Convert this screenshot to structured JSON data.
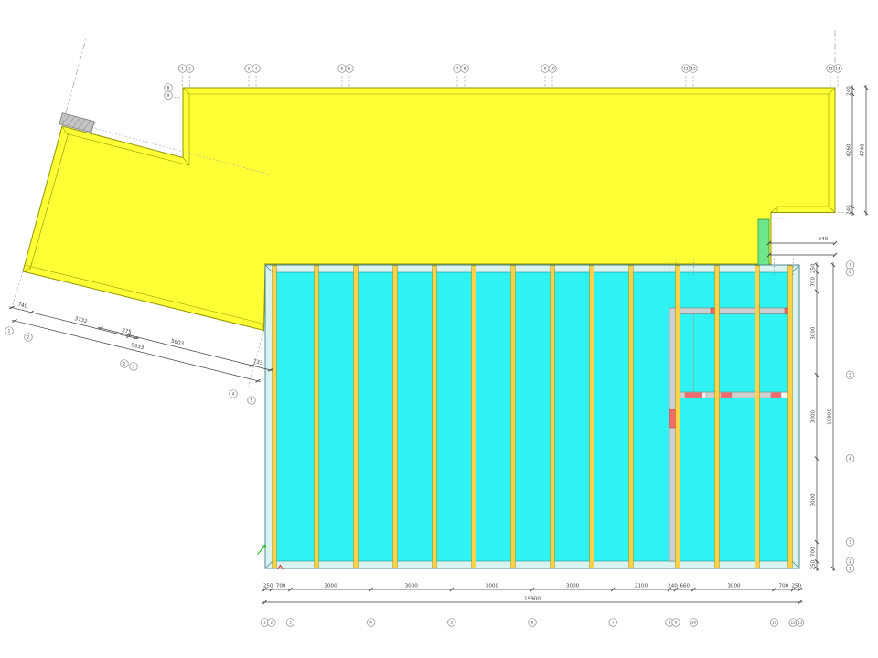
{
  "drawing": {
    "colors": {
      "slab_yellow": "#ffff35",
      "slab_edge": "#8f9600",
      "deck_cyan": "#2ff2f2",
      "wall_band": "#d9f4ef",
      "cyan_edge": "#3d7d85",
      "joist": "#ffd24a",
      "joist_edge": "#a68a00",
      "wall_gray": "#cfcfcf",
      "wall_edge": "#7a7a7a",
      "opening_red": "#f36b6b",
      "opening_edge": "#c03030",
      "green_strip": "#6ee68a",
      "green_edge": "#2f9a4a",
      "dim": "#3c3c3c",
      "bubble_edge": "#8a8a8a",
      "centerline": "#9a9a9a",
      "hidden_line": "#aaaaaa",
      "ucs_green": "#18b318",
      "ucs_red": "#e02020",
      "hatch_fill": "#c4c4c4",
      "hatch_line": "#8a8a8a"
    },
    "dim_chains": {
      "bottom": {
        "segments_mm": [
          250,
          700,
          3000,
          3000,
          3000,
          3000,
          2100,
          240,
          660,
          3000,
          700,
          250
        ],
        "labels": [
          "250",
          "700",
          "3000",
          "3000",
          "3000",
          "3000",
          "2100",
          "240",
          "660",
          "3000",
          "700",
          "250"
        ],
        "total": "19900"
      },
      "right_deck": {
        "segments_mm": [
          250,
          700,
          3000,
          3000,
          3000,
          700,
          250
        ],
        "labels": [
          "250",
          "700",
          "3000",
          "3000",
          "3000",
          "700",
          "250"
        ],
        "total": "10900"
      },
      "right_slab": {
        "segments_mm": [
          240,
          4260,
          240
        ],
        "labels": [
          "240",
          "4260",
          "240"
        ],
        "total": "4740"
      },
      "notch_label": "240",
      "left_slant": {
        "chain1": [
          "740",
          "3732",
          "275"
        ],
        "chain2": [
          "9333"
        ],
        "chain3": [
          "5803",
          "733"
        ]
      }
    },
    "axis_bubbles": {
      "bottom": [
        "1",
        "2",
        "3",
        "4",
        "5",
        "6",
        "7",
        "8",
        "9",
        "10",
        "11",
        "12",
        "13"
      ],
      "top_pairs": [
        [
          "1",
          "2"
        ],
        [
          "3",
          "4"
        ],
        [
          "5",
          "6"
        ],
        [
          "7",
          "8"
        ],
        [
          "9",
          "10"
        ],
        [
          "11",
          "12"
        ],
        [
          "13",
          "14"
        ]
      ],
      "right_deck": [
        "7",
        "6",
        "5",
        "4",
        "3",
        "2",
        "1"
      ],
      "slab_left": [
        "8",
        "9"
      ],
      "left_slant": [
        "1",
        "2",
        "2",
        "3",
        "4",
        "5"
      ]
    }
  }
}
